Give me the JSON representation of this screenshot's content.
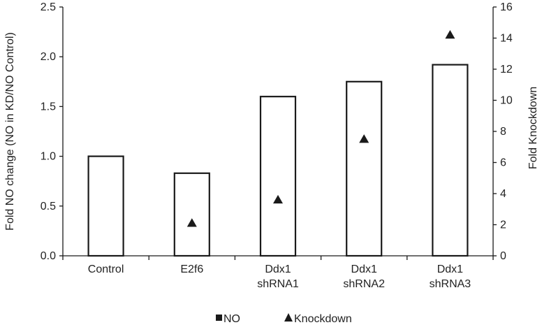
{
  "chart_data": {
    "type": "bar",
    "categories": [
      [
        "Control"
      ],
      [
        "E2f6"
      ],
      [
        "Ddx1",
        "shRNA1"
      ],
      [
        "Ddx1",
        "shRNA2"
      ],
      [
        "Ddx1",
        "shRNA3"
      ]
    ],
    "series": [
      {
        "name": "NO",
        "kind": "bar",
        "axis": "left",
        "values": [
          1.0,
          0.83,
          1.6,
          1.75,
          1.92
        ]
      },
      {
        "name": "Knockdown",
        "kind": "marker",
        "marker": "triangle",
        "axis": "right",
        "values": [
          null,
          2.1,
          3.6,
          7.5,
          14.2
        ]
      }
    ],
    "y_left": {
      "label": "Fold NO change (NO in KD/NO Control)",
      "range": [
        0,
        2.5
      ],
      "ticks": [
        "0.0",
        "0.5",
        "1.0",
        "1.5",
        "2.0",
        "2.5"
      ]
    },
    "y_right": {
      "label": "Fold Knockdown",
      "range": [
        0,
        16
      ],
      "ticks": [
        "0",
        "2",
        "4",
        "6",
        "8",
        "10",
        "12",
        "14",
        "16"
      ]
    },
    "legend": {
      "position": "bottom",
      "items": [
        {
          "label": "NO",
          "symbol": "square"
        },
        {
          "label": "Knockdown",
          "symbol": "triangle"
        }
      ]
    },
    "grid": false,
    "colors": {
      "bar_fill": "#ffffff",
      "bar_stroke": "#1a1a1a",
      "marker": "#1a1a1a",
      "axis": "#1a1a1a"
    }
  }
}
